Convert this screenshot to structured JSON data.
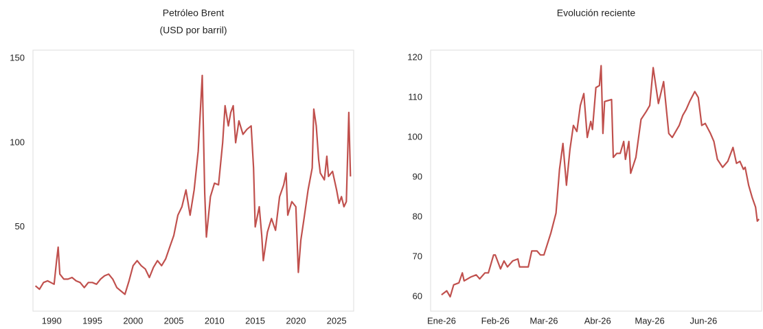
{
  "chart_data": [
    {
      "type": "line",
      "title": "Petróleo Brent",
      "subtitle": "(USD por barril)",
      "series": [
        {
          "color": "#c0504d",
          "x": [
            1988,
            1988.5,
            1989,
            1989.5,
            1990.3,
            1990.6,
            1990.8,
            1991,
            1991.5,
            1992,
            1992.5,
            1993,
            1993.5,
            1994,
            1994.5,
            1995,
            1995.5,
            1996,
            1996.5,
            1997,
            1997.5,
            1998,
            1998.5,
            1999,
            1999.5,
            2000,
            2000.5,
            2001,
            2001.5,
            2002,
            2002.5,
            2003,
            2003.5,
            2004,
            2004.5,
            2005,
            2005.5,
            2006,
            2006.5,
            2007,
            2007.5,
            2008,
            2008.5,
            2008.8,
            2009,
            2009.5,
            2010,
            2010.5,
            2011,
            2011.3,
            2011.7,
            2012,
            2012.3,
            2012.6,
            2013,
            2013.5,
            2014,
            2014.5,
            2014.8,
            2015,
            2015.5,
            2015.8,
            2016,
            2016.5,
            2017,
            2017.5,
            2018,
            2018.5,
            2018.8,
            2019,
            2019.5,
            2020,
            2020.3,
            2020.6,
            2021,
            2021.5,
            2022,
            2022.2,
            2022.5,
            2022.8,
            2023,
            2023.5,
            2023.8,
            2024,
            2024.5,
            2025,
            2025.3,
            2025.6,
            2025.9,
            2026.2,
            2026.5,
            2026.7
          ],
          "values": [
            15,
            13,
            17,
            18,
            16,
            30,
            38,
            22,
            19,
            19,
            20,
            18,
            17,
            14,
            17,
            17,
            16,
            19,
            21,
            22,
            19,
            14,
            12,
            10,
            18,
            27,
            30,
            27,
            25,
            20,
            26,
            30,
            27,
            31,
            38,
            45,
            57,
            62,
            72,
            57,
            72,
            95,
            140,
            70,
            44,
            68,
            76,
            75,
            100,
            122,
            110,
            118,
            122,
            100,
            113,
            105,
            108,
            110,
            85,
            50,
            62,
            45,
            30,
            47,
            55,
            48,
            68,
            75,
            82,
            57,
            65,
            62,
            23,
            42,
            55,
            72,
            85,
            120,
            110,
            90,
            82,
            78,
            92,
            80,
            83,
            72,
            64,
            68,
            62,
            65,
            118,
            80
          ]
        }
      ],
      "xlim": [
        1987.7,
        2027.1
      ],
      "xticks": [
        1990,
        1995,
        2000,
        2005,
        2010,
        2015,
        2020,
        2025
      ],
      "ylim": [
        0,
        155
      ],
      "yticks": [
        50,
        100,
        150
      ]
    },
    {
      "type": "line",
      "title": "Evolución reciente",
      "series": [
        {
          "color": "#c0504d",
          "x": [
            0,
            3,
            5,
            7,
            10,
            12,
            13,
            17,
            20,
            22,
            25,
            27,
            30,
            31,
            34,
            36,
            38,
            41,
            44,
            45,
            50,
            52,
            55,
            57,
            59,
            63,
            66,
            68,
            70,
            72,
            74,
            76,
            78,
            80,
            82,
            84,
            86,
            87,
            89,
            91,
            92,
            93,
            94,
            98,
            99,
            101,
            103,
            105,
            106,
            108,
            109,
            112,
            115,
            118,
            120,
            122,
            125,
            128,
            131,
            133,
            137,
            139,
            141,
            143,
            146,
            148,
            150,
            152,
            155,
            157,
            159,
            162,
            165,
            168,
            170,
            172,
            174,
            175,
            177,
            179,
            181,
            182,
            183
          ],
          "values": [
            60.5,
            61.5,
            60,
            63,
            63.5,
            66,
            64,
            65,
            65.5,
            64.5,
            66,
            66,
            70.5,
            70.5,
            67,
            69,
            67.5,
            69,
            69.5,
            67.5,
            67.5,
            71.5,
            71.5,
            70.5,
            70.5,
            76,
            81,
            92,
            98.5,
            88,
            97,
            103,
            101.5,
            108,
            111,
            100,
            104,
            102,
            112.5,
            113,
            118,
            101,
            109,
            109.5,
            95,
            96,
            96,
            99,
            94.5,
            99,
            91,
            95,
            104.5,
            106.5,
            108,
            117.5,
            108.5,
            114,
            101,
            100,
            103,
            105.5,
            107,
            109,
            111.5,
            110,
            103,
            103.5,
            101,
            99,
            94.5,
            92.5,
            94,
            97.5,
            93.5,
            94,
            92,
            92.5,
            88,
            85,
            82.5,
            79,
            79.5
          ]
        }
      ],
      "xlim": [
        -6.3,
        184.5
      ],
      "xticks": [
        {
          "value": 0,
          "label": "Ene-26"
        },
        {
          "value": 31,
          "label": "Feb-26"
        },
        {
          "value": 59,
          "label": "Mar-26"
        },
        {
          "value": 90,
          "label": "Abr-26"
        },
        {
          "value": 120,
          "label": "May-26"
        },
        {
          "value": 151,
          "label": "Jun-26"
        }
      ],
      "ylim": [
        56.4,
        121.9
      ],
      "yticks": [
        60,
        70,
        80,
        90,
        100,
        110,
        120
      ]
    }
  ]
}
